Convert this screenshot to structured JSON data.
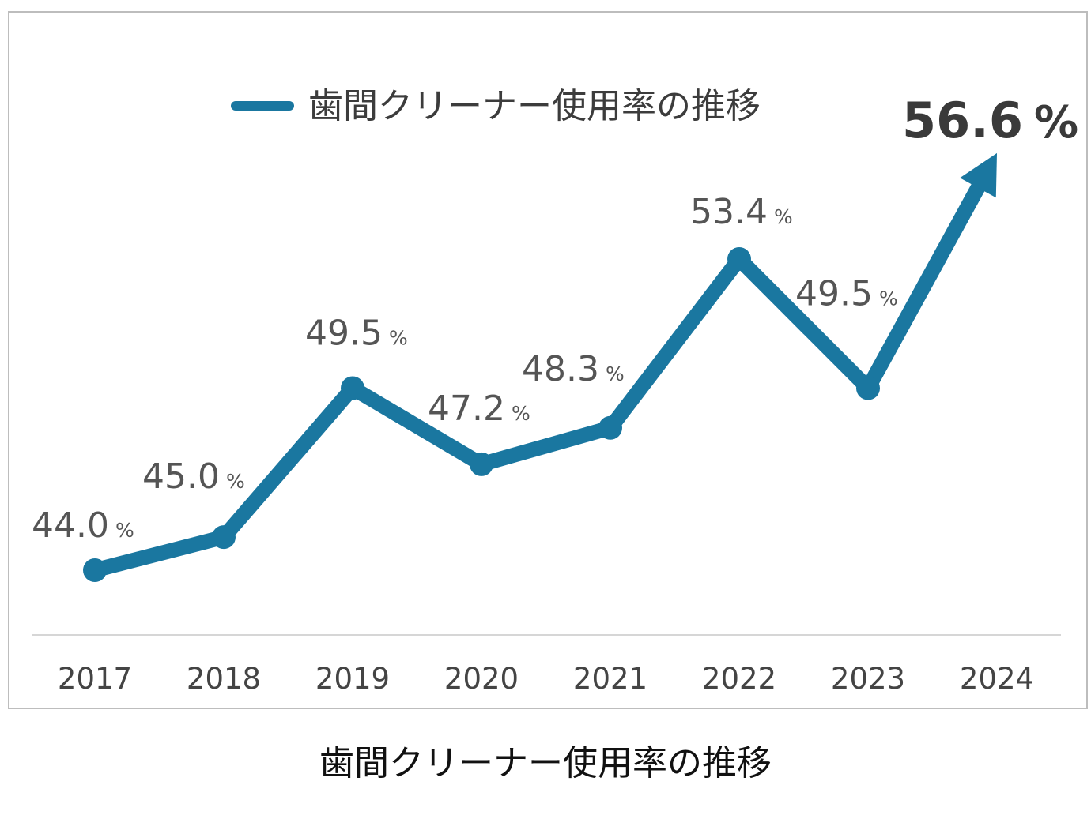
{
  "chart_data": {
    "type": "line",
    "categories": [
      "2017",
      "2018",
      "2019",
      "2020",
      "2021",
      "2022",
      "2023",
      "2024"
    ],
    "series": [
      {
        "name": "歯間クリーナー使用率の推移",
        "values": [
          44.0,
          45.0,
          49.5,
          47.2,
          48.3,
          53.4,
          49.5,
          56.6
        ],
        "value_labels": [
          "44.0",
          "45.0",
          "49.5",
          "47.2",
          "48.3",
          "53.4",
          "49.5",
          "56.6"
        ],
        "color": "#1a77a0"
      }
    ],
    "unit": "%",
    "legend": "top",
    "grid": false,
    "last_point_marker": "arrow"
  },
  "caption": "歯間クリーナー使用率の推移"
}
